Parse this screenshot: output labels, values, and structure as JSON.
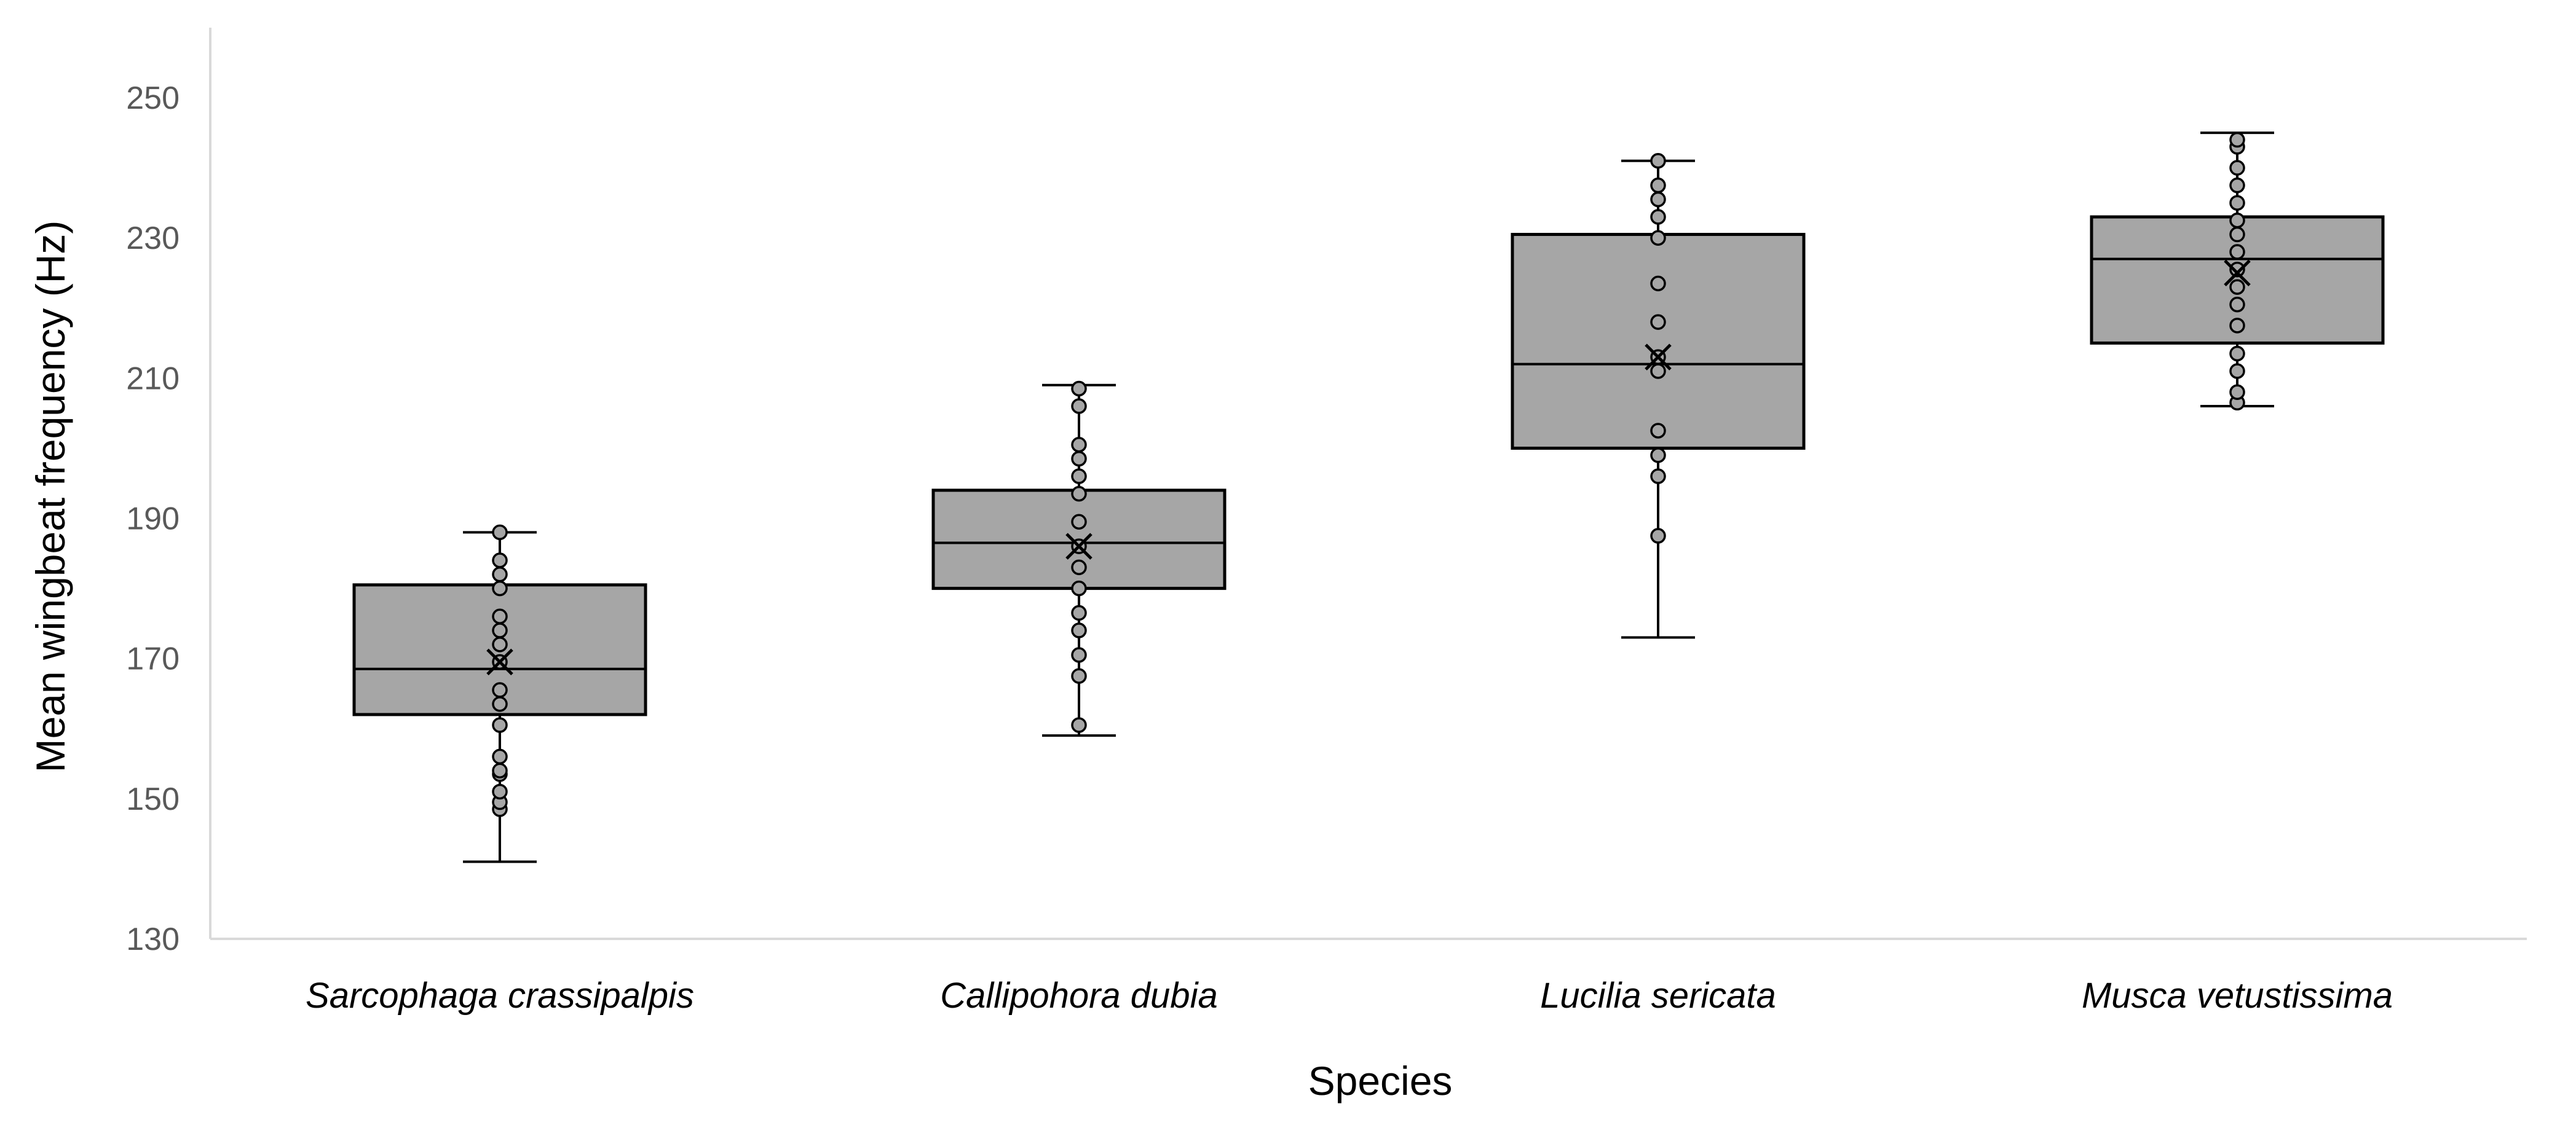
{
  "chart_data": {
    "type": "box",
    "title": "",
    "xlabel": "Species",
    "ylabel": "Mean wingbeat frequency (Hz)",
    "ylim": [
      130,
      260
    ],
    "yticks": [
      130,
      150,
      170,
      190,
      210,
      230,
      250
    ],
    "grid": false,
    "legend": "none",
    "colors": {
      "box_fill": "#a6a6a6",
      "box_stroke": "#000000",
      "axis": "#d9d9d9",
      "tick_text": "#595959"
    },
    "categories": [
      "Sarcophaga crassipalpis",
      "Callipohora dubia",
      "Lucilia sericata",
      "Musca vetustissima"
    ],
    "boxes": [
      {
        "category": "Sarcophaga crassipalpis",
        "whisker_low": 141,
        "q1": 162,
        "median": 168.5,
        "q3": 180.5,
        "whisker_high": 188,
        "mean": 169.5,
        "points": [
          148.5,
          149.5,
          151,
          153.5,
          154,
          156,
          160.5,
          163.5,
          165.5,
          169.5,
          172,
          174,
          176,
          180,
          182,
          184,
          188
        ]
      },
      {
        "category": "Callipohora dubia",
        "whisker_low": 159,
        "q1": 180,
        "median": 186.5,
        "q3": 194,
        "whisker_high": 209,
        "mean": 186,
        "points": [
          160.5,
          167.5,
          170.5,
          174,
          176.5,
          180,
          183,
          186,
          189.5,
          193.5,
          196,
          198.5,
          200.5,
          206,
          208.5
        ]
      },
      {
        "category": "Lucilia sericata",
        "whisker_low": 173,
        "q1": 200,
        "median": 212,
        "q3": 230.5,
        "whisker_high": 241,
        "mean": 213,
        "points": [
          187.5,
          196,
          199,
          202.5,
          211,
          213,
          218,
          223.5,
          230,
          233,
          235.5,
          237.5,
          241
        ]
      },
      {
        "category": "Musca vetustissima",
        "whisker_low": 206,
        "q1": 215,
        "median": 227,
        "q3": 233,
        "whisker_high": 245,
        "mean": 225,
        "points": [
          206.5,
          208,
          211,
          213.5,
          217.5,
          220.5,
          223,
          225.5,
          228,
          230.5,
          232.5,
          235,
          237.5,
          240,
          243,
          244
        ]
      }
    ]
  }
}
